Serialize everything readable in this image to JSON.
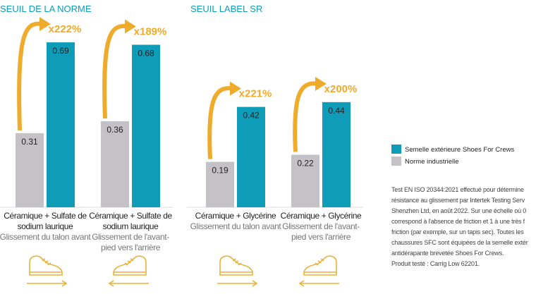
{
  "chart_data": [
    {
      "type": "bar",
      "title": "SEUIL DE LA NORME",
      "categories": [
        "Céramique + Sulfate de sodium laurique",
        "Céramique + Sulfate de sodium laurique"
      ],
      "category_notes": [
        "Glissement du talon avant",
        "Glissement de l'avant-pied vers l'arrière"
      ],
      "series": [
        {
          "color": "#c4c2c7",
          "values": [
            0.31,
            0.36
          ]
        },
        {
          "color": "#0e9cb8",
          "values": [
            0.69,
            0.68
          ]
        }
      ],
      "annotations": [
        "x222%",
        "x189%"
      ]
    },
    {
      "type": "bar",
      "title": "SEUIL LABEL SR",
      "categories": [
        "Céramique + Glycérine",
        "Céramique + Glycérine"
      ],
      "category_notes": [
        "Glissement du talon avant",
        "Glissement de l'avant-pied vers l'arrière"
      ],
      "series": [
        {
          "color": "#c4c2c7",
          "values": [
            0.19,
            0.22
          ]
        },
        {
          "color": "#0e9cb8",
          "values": [
            0.42,
            0.44
          ]
        }
      ],
      "annotations": [
        "x221%",
        "x200%"
      ]
    }
  ],
  "legend": [
    "Norme industrielle",
    "Semelle extérieure Shoes For Crews"
  ],
  "footnote": [
    "Test EN ISO 20344:2021 effectué pour détermine",
    "résistance au glissement par Intertek Testing Serv",
    "Shenzhen Ltd, en août 2022. Sur une échelle où 0",
    "correspond à l'absence de friction et 1 à une très f",
    "friction (par exemple, sur un tapis sec). Toutes les",
    "chaussures SFC sont équipées de la semelle extér",
    "antidérapante brevetée Shoes For Crews.",
    "Produit testé : Carrig Low 62201."
  ]
}
